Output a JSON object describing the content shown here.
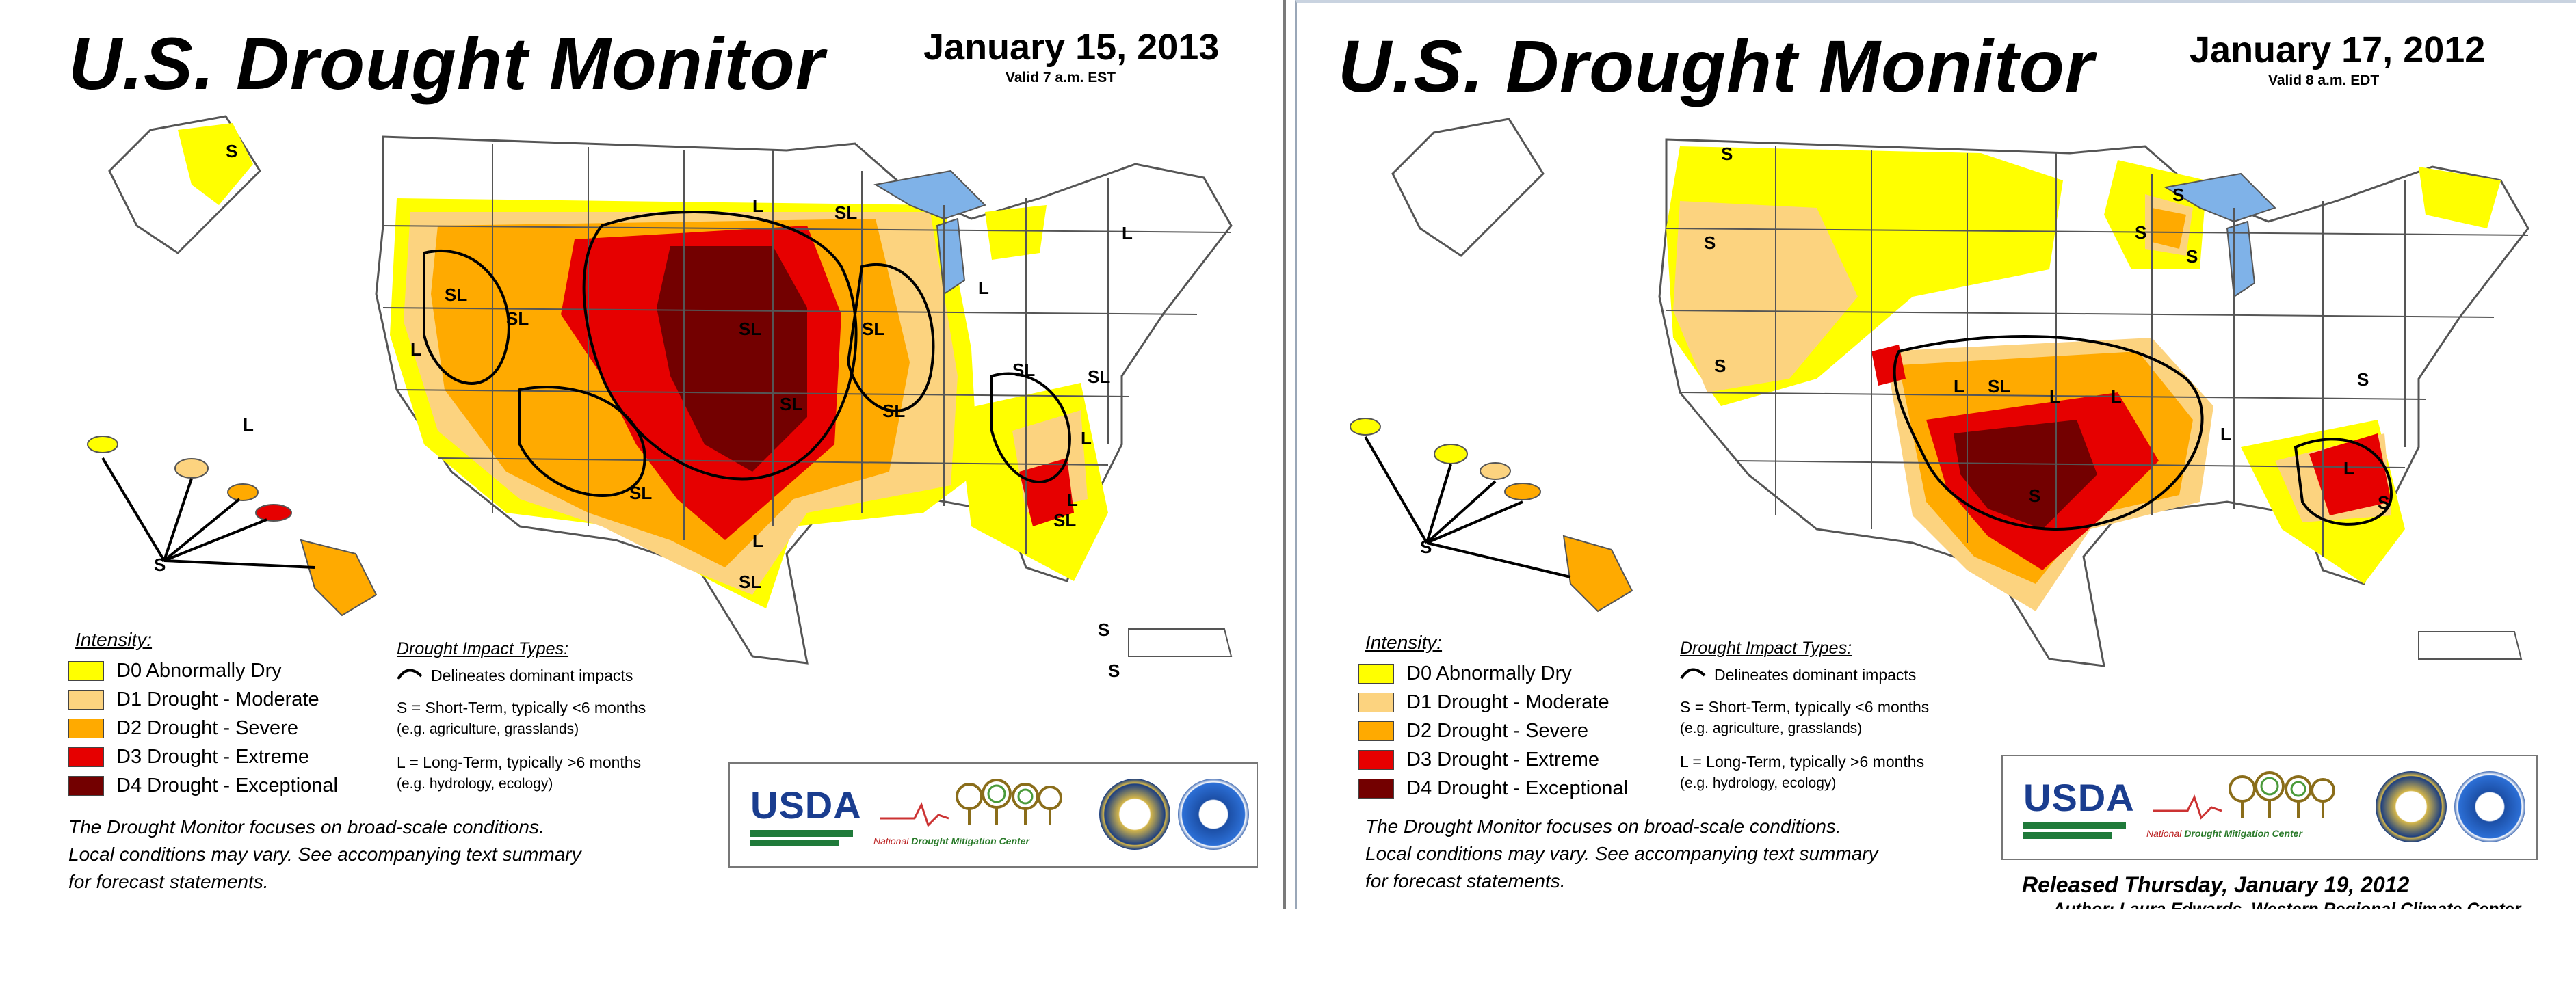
{
  "colors": {
    "D0": "#ffff00",
    "D1": "#fcd37f",
    "D2": "#ffaa00",
    "D3": "#e60000",
    "D4": "#730000",
    "water": "#7fb2e8",
    "state_lines": "#555555",
    "impact_lines": "#000000"
  },
  "legend": {
    "intensity_title": "Intensity:",
    "items": [
      {
        "code": "D0",
        "label": "D0 Abnormally Dry"
      },
      {
        "code": "D1",
        "label": "D1 Drought - Moderate"
      },
      {
        "code": "D2",
        "label": "D2 Drought - Severe"
      },
      {
        "code": "D3",
        "label": "D3 Drought - Extreme"
      },
      {
        "code": "D4",
        "label": "D4 Drought - Exceptional"
      }
    ],
    "impact_title": "Drought Impact Types:",
    "impact_line": "Delineates dominant impacts",
    "short_term": "S = Short-Term, typically <6 months",
    "short_term_eg": "(e.g. agriculture, grasslands)",
    "long_term": "L = Long-Term, typically >6 months",
    "long_term_eg": "(e.g. hydrology, ecology)"
  },
  "footnote": {
    "line1": "The Drought Monitor focuses on broad-scale conditions.",
    "line2": "Local conditions may vary. See accompanying text summary",
    "line3": "for forecast statements."
  },
  "logos": {
    "usda": "USDA",
    "ndmc_national": "National",
    "ndmc_center": "Drought Mitigation Center",
    "seal_icon": "department-of-commerce-seal-icon",
    "noaa_icon": "noaa-logo-icon"
  },
  "panels": [
    {
      "title": "U.S. Drought Monitor",
      "date": "January 15, 2013",
      "valid": "Valid 7 a.m. EST",
      "impact_labels": [
        "S",
        "SL",
        "L",
        "L",
        "SL",
        "SL",
        "SL",
        "SL",
        "SL",
        "SL",
        "SL",
        "SL",
        "L",
        "L",
        "L",
        "SL",
        "L",
        "SL",
        "L",
        "SL",
        "L",
        "S",
        "S",
        "S"
      ]
    },
    {
      "title": "U.S. Drought Monitor",
      "date": "January 17, 2012",
      "valid": "Valid 8 a.m. EDT",
      "released": "Released Thursday, January 19, 2012",
      "author": "Author: Laura Edwards, Western Regional Climate Center",
      "impact_labels": [
        "S",
        "S",
        "S",
        "S",
        "L",
        "S",
        "S",
        "SL",
        "L",
        "L",
        "S",
        "L",
        "L",
        "S",
        "S",
        "S"
      ]
    }
  ]
}
